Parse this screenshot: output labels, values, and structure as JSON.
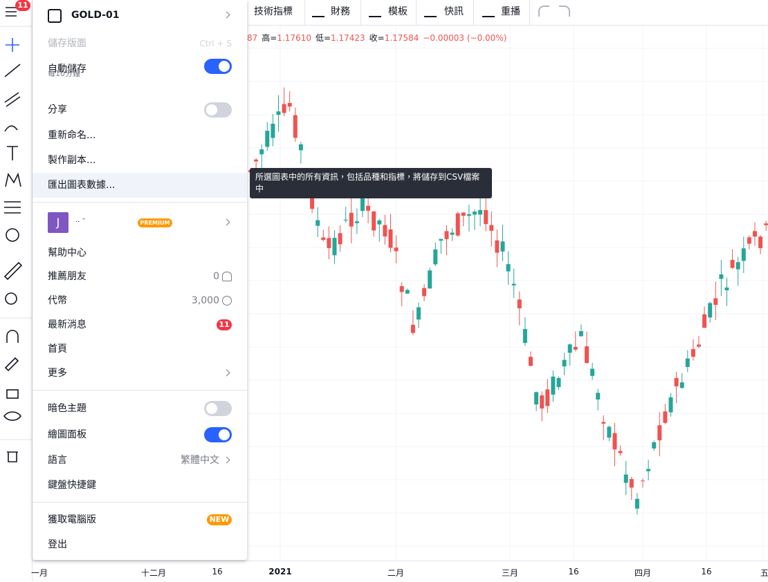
{
  "top_badge": "11",
  "toolbar": {
    "buttons": [
      {
        "label": "技術指標"
      },
      {
        "label": "財務"
      },
      {
        "label": "模板"
      },
      {
        "label": "快訊"
      },
      {
        "label": "重播"
      }
    ]
  },
  "legend": {
    "open_tail": "87",
    "items": [
      {
        "label": "高=",
        "value": "1.17610"
      },
      {
        "label": "低=",
        "value": "1.17423"
      },
      {
        "label": "收=",
        "value": "1.17584"
      }
    ],
    "change": "−0.00003 (−0.00%)"
  },
  "time_axis": {
    "labels": [
      "一月",
      "十二月",
      "16",
      "2021",
      "二月",
      "三月",
      "16",
      "四月",
      "16",
      "五"
    ]
  },
  "menu": {
    "chart_name": "GOLD-01",
    "items": [
      {
        "label": "儲存版面",
        "shortcut": "Ctrl + S",
        "disabled": true
      },
      {
        "label": "自動儲存",
        "note": "每10分鐘",
        "toggle": true
      },
      {
        "label": "分享",
        "toggle": false
      },
      {
        "label": "重新命名..."
      },
      {
        "label": "製作副本..."
      },
      {
        "label": "匯出圖表數據...",
        "highlighted": true
      }
    ],
    "user": {
      "initial": "J",
      "name": "·‧ ˉ",
      "badge": "PREMIUM"
    },
    "links": [
      {
        "label": "幫助中心"
      },
      {
        "label": "推薦朋友",
        "value": "0",
        "icon": "person"
      },
      {
        "label": "代幣",
        "value": "3,000",
        "icon": "coin"
      },
      {
        "label": "最新消息",
        "badge": "11"
      },
      {
        "label": "首頁"
      },
      {
        "label": "更多",
        "arrow": true
      }
    ],
    "settings": [
      {
        "label": "暗色主題",
        "toggle": false
      },
      {
        "label": "繪圖面板",
        "toggle": true
      },
      {
        "label": "語言",
        "value": "繁體中文",
        "arrow": true
      },
      {
        "label": "鍵盤快捷鍵"
      }
    ],
    "footer": [
      {
        "label": "獲取電腦版",
        "badge": "NEW"
      },
      {
        "label": "登出"
      }
    ]
  },
  "tooltip": "所選圖表中的所有資訊，包括品種和指標，將儲存到CSV檔案中"
}
